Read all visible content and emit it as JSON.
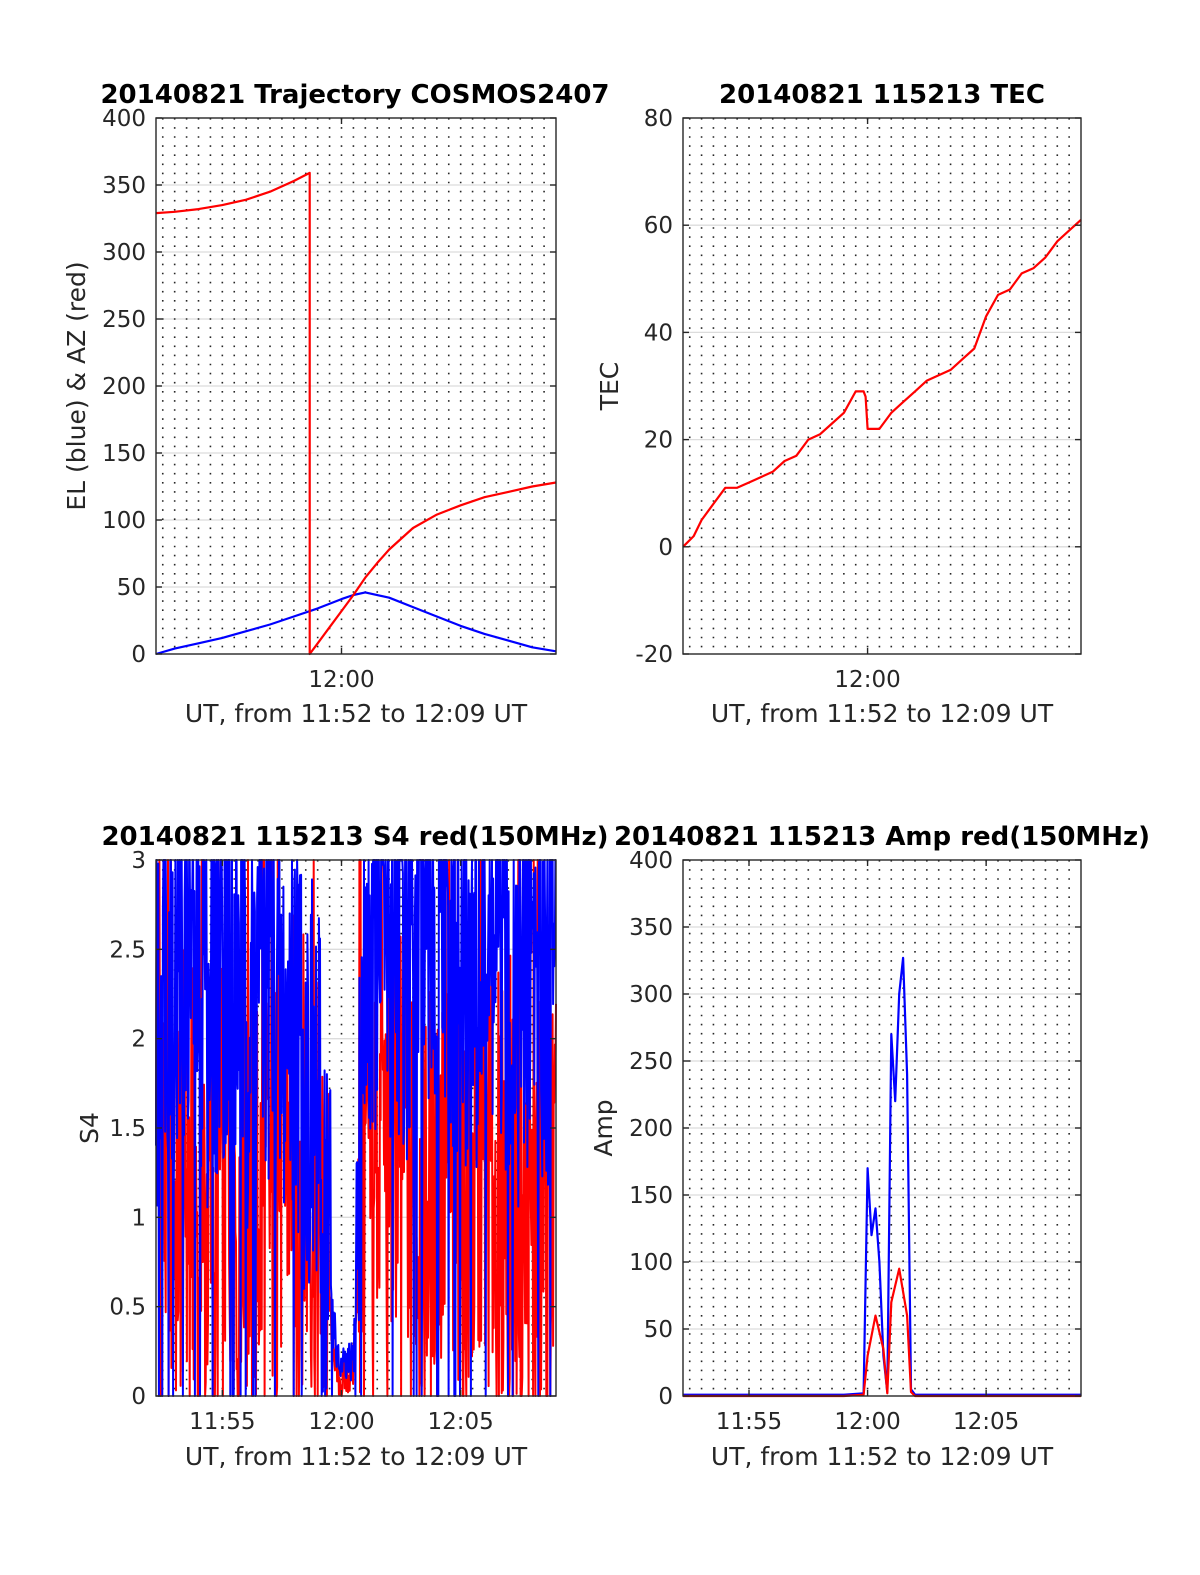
{
  "figure": {
    "width": 1200,
    "height": 1575
  },
  "colors": {
    "red": "#ff0000",
    "blue": "#0000ff",
    "axis": "#262626",
    "grid": "#dcdcdc"
  },
  "chart_data": [
    {
      "id": "trajectory",
      "type": "line",
      "title": "20140821 Trajectory COSMOS2407",
      "xlabel": "UT, from 11:52 to 12:09 UT",
      "ylabel": "EL (blue) & AZ (red)",
      "xlim": [
        "11:52:13",
        "12:09:00"
      ],
      "ylim": [
        0,
        400
      ],
      "yticks": [
        0,
        50,
        100,
        150,
        200,
        250,
        300,
        350,
        400
      ],
      "xticks": [
        "12:00"
      ],
      "grid": true,
      "series": [
        {
          "color": "#0000ff",
          "x": [
            "11:52:13",
            "11:53:00",
            "11:54:00",
            "11:55:00",
            "11:56:00",
            "11:57:00",
            "11:58:00",
            "11:59:00",
            "12:00:00",
            "12:00:30",
            "12:01:00",
            "12:02:00",
            "12:03:00",
            "12:04:00",
            "12:05:00",
            "12:06:00",
            "12:07:00",
            "12:08:00",
            "12:09:00"
          ],
          "values": [
            0,
            4,
            8,
            12,
            17,
            22,
            28,
            34,
            41,
            44,
            46,
            42,
            35,
            28,
            21,
            15,
            10,
            5,
            2
          ]
        },
        {
          "color": "#ff0000",
          "x": [
            "11:52:13",
            "11:53:00",
            "11:54:00",
            "11:55:00",
            "11:56:00",
            "11:57:00",
            "11:58:00",
            "11:58:40",
            "11:58:40",
            "11:59:00",
            "11:59:30",
            "12:00:00",
            "12:00:30",
            "12:01:00",
            "12:01:30",
            "12:02:00",
            "12:03:00",
            "12:04:00",
            "12:05:00",
            "12:06:00",
            "12:07:00",
            "12:08:00",
            "12:09:00"
          ],
          "values": [
            329,
            330,
            332,
            335,
            339,
            345,
            353,
            359,
            0,
            8,
            20,
            32,
            44,
            57,
            68,
            78,
            94,
            104,
            111,
            117,
            121,
            125,
            128
          ]
        }
      ]
    },
    {
      "id": "tec",
      "type": "line",
      "title": "20140821 115213 TEC",
      "xlabel": "UT, from 11:52 to 12:09 UT",
      "ylabel": "TEC",
      "xlim": [
        "11:52:13",
        "12:09:00"
      ],
      "ylim": [
        -20,
        80
      ],
      "yticks": [
        -20,
        0,
        20,
        40,
        60,
        80
      ],
      "xticks": [
        "12:00"
      ],
      "grid": true,
      "series": [
        {
          "color": "#ff0000",
          "x": [
            "11:52:13",
            "11:52:40",
            "11:53:00",
            "11:53:30",
            "11:54:00",
            "11:54:30",
            "11:55:00",
            "11:55:30",
            "11:56:00",
            "11:56:30",
            "11:57:00",
            "11:57:30",
            "11:58:00",
            "11:58:30",
            "11:59:00",
            "11:59:30",
            "11:59:50",
            "11:59:55",
            "12:00:00",
            "12:00:30",
            "12:01:00",
            "12:01:30",
            "12:02:00",
            "12:02:30",
            "12:03:00",
            "12:03:30",
            "12:04:00",
            "12:04:30",
            "12:05:00",
            "12:05:30",
            "12:06:00",
            "12:06:30",
            "12:07:00",
            "12:07:30",
            "12:08:00",
            "12:08:30",
            "12:09:00"
          ],
          "values": [
            0,
            2,
            5,
            8,
            11,
            11,
            12,
            13,
            14,
            16,
            17,
            20,
            21,
            23,
            25,
            29,
            29,
            28,
            22,
            22,
            25,
            27,
            29,
            31,
            32,
            33,
            35,
            37,
            43,
            47,
            48,
            51,
            52,
            54,
            57,
            59,
            61
          ]
        }
      ]
    },
    {
      "id": "s4",
      "type": "line",
      "title": "20140821 115213 S4 red(150MHz)",
      "xlabel": "UT, from 11:52 to 12:09 UT",
      "ylabel": "S4",
      "xlim": [
        "11:52:13",
        "12:09:00"
      ],
      "ylim": [
        0,
        3
      ],
      "yticks": [
        0,
        0.5,
        1,
        1.5,
        2,
        2.5,
        3
      ],
      "xticks": [
        "11:55",
        "12:00",
        "12:05"
      ],
      "grid": true,
      "series": [
        {
          "color": "#ff0000",
          "x": [
            "11:52:13",
            "11:52:30",
            "11:53:00",
            "11:53:30",
            "11:54:00",
            "11:54:30",
            "11:55:00",
            "11:55:30",
            "11:56:00",
            "11:56:30",
            "11:57:00",
            "11:57:30",
            "11:58:00",
            "11:58:30",
            "11:59:00",
            "11:59:30",
            "11:59:50",
            "12:00:10",
            "12:00:30",
            "12:01:00",
            "12:01:30",
            "12:02:00",
            "12:02:30",
            "12:03:00",
            "12:03:30",
            "12:04:00",
            "12:04:30",
            "12:05:00",
            "12:05:30",
            "12:06:00",
            "12:06:30",
            "12:07:00",
            "12:07:30",
            "12:08:00",
            "12:08:30",
            "12:09:00"
          ],
          "values": [
            2.3,
            1.2,
            1.0,
            1.3,
            1.1,
            1.0,
            1.2,
            1.3,
            1.2,
            1.0,
            1.1,
            1.3,
            1.5,
            1.3,
            1.0,
            0.5,
            0.1,
            0.1,
            0.15,
            1.3,
            1.5,
            1.4,
            1.7,
            1.2,
            1.0,
            1.3,
            1.2,
            0.9,
            1.0,
            1.3,
            1.1,
            1.2,
            1.0,
            0.8,
            1.1,
            1.0
          ]
        },
        {
          "color": "#0000ff",
          "x": [
            "11:52:13",
            "11:52:30",
            "11:53:00",
            "11:53:30",
            "11:54:00",
            "11:54:30",
            "11:55:00",
            "11:55:30",
            "11:56:00",
            "11:56:30",
            "11:57:00",
            "11:57:30",
            "11:58:00",
            "11:58:30",
            "11:59:00",
            "11:59:30",
            "11:59:50",
            "12:00:10",
            "12:00:30",
            "12:01:00",
            "12:01:30",
            "12:02:00",
            "12:02:30",
            "12:03:00",
            "12:03:30",
            "12:04:00",
            "12:04:30",
            "12:05:00",
            "12:05:30",
            "12:06:00",
            "12:06:30",
            "12:07:00",
            "12:07:30",
            "12:08:00",
            "12:08:30",
            "12:09:00"
          ],
          "values": [
            2.0,
            2.6,
            2.4,
            2.7,
            2.5,
            2.3,
            2.6,
            2.4,
            2.2,
            2.5,
            2.3,
            2.0,
            2.2,
            1.8,
            1.5,
            0.8,
            0.18,
            0.15,
            0.2,
            2.4,
            2.8,
            2.6,
            2.7,
            2.5,
            2.3,
            2.6,
            2.4,
            2.5,
            2.2,
            2.6,
            2.4,
            2.5,
            2.3,
            2.6,
            2.5,
            2.4
          ]
        }
      ]
    },
    {
      "id": "amp",
      "type": "line",
      "title": "20140821 115213 Amp red(150MHz)",
      "xlabel": "UT, from 11:52 to 12:09 UT",
      "ylabel": "Amp",
      "xlim": [
        "11:52:13",
        "12:09:00"
      ],
      "ylim": [
        0,
        400
      ],
      "yticks": [
        0,
        50,
        100,
        150,
        200,
        250,
        300,
        350,
        400
      ],
      "xticks": [
        "11:55",
        "12:00",
        "12:05"
      ],
      "grid": true,
      "series": [
        {
          "color": "#0000ff",
          "x": [
            "11:52:13",
            "11:55:00",
            "11:59:00",
            "11:59:50",
            "12:00:00",
            "12:00:10",
            "12:00:20",
            "12:00:30",
            "12:00:40",
            "12:00:50",
            "12:01:00",
            "12:01:10",
            "12:01:20",
            "12:01:30",
            "12:01:40",
            "12:01:50",
            "12:02:00",
            "12:05:00",
            "12:09:00"
          ],
          "values": [
            1,
            1,
            1,
            2,
            170,
            120,
            140,
            100,
            30,
            3,
            270,
            220,
            300,
            327,
            240,
            5,
            1,
            1,
            1
          ]
        },
        {
          "color": "#ff0000",
          "x": [
            "11:52:13",
            "11:59:00",
            "11:59:50",
            "12:00:00",
            "12:00:20",
            "12:00:40",
            "12:00:50",
            "12:01:00",
            "12:01:20",
            "12:01:40",
            "12:01:50",
            "12:02:00",
            "12:09:00"
          ],
          "values": [
            0,
            0,
            1,
            30,
            60,
            35,
            2,
            70,
            95,
            60,
            3,
            0,
            0
          ]
        }
      ]
    }
  ]
}
